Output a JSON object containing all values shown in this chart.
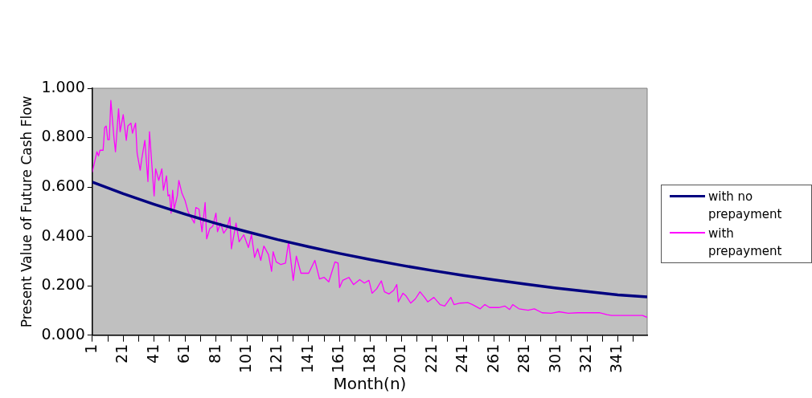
{
  "chart_data": {
    "type": "line",
    "xlabel": "Month(n)",
    "ylabel": "Present Value of Future Cash Flow",
    "legend": "right",
    "marker": "none",
    "line_style": "solid",
    "xlim": [
      1,
      360
    ],
    "xticks": [
      1,
      {
        "value": 11,
        "label": null
      },
      21,
      {
        "value": 31,
        "label": null
      },
      41,
      {
        "value": 51,
        "label": null
      },
      61,
      {
        "value": 71,
        "label": null
      },
      81,
      {
        "value": 91,
        "label": null
      },
      101,
      {
        "value": 111,
        "label": null
      },
      121,
      {
        "value": 131,
        "label": null
      },
      141,
      {
        "value": 151,
        "label": null
      },
      161,
      {
        "value": 171,
        "label": null
      },
      181,
      {
        "value": 191,
        "label": null
      },
      201,
      {
        "value": 211,
        "label": null
      },
      221,
      {
        "value": 231,
        "label": null
      },
      241,
      {
        "value": 251,
        "label": null
      },
      261,
      {
        "value": 271,
        "label": null
      },
      281,
      {
        "value": 291,
        "label": null
      },
      301,
      {
        "value": 311,
        "label": null
      },
      321,
      {
        "value": 331,
        "label": null
      },
      341,
      {
        "value": 351,
        "label": null
      }
    ],
    "ylim": [
      0,
      1
    ],
    "yticks": [
      {
        "value": 0,
        "label": "0.000"
      },
      {
        "value": 0.2,
        "label": "0.200"
      },
      {
        "value": 0.4,
        "label": "0.400"
      },
      {
        "value": 0.6,
        "label": "0.600"
      },
      {
        "value": 0.8,
        "label": "0.800"
      },
      {
        "value": 1,
        "label": "1.000"
      }
    ],
    "series": [
      {
        "name": "with no prepayment",
        "color": "#000080",
        "x": [
          1,
          21,
          41,
          61,
          81,
          101,
          121,
          141,
          161,
          181,
          201,
          221,
          241,
          261,
          281,
          301,
          321,
          341,
          360
        ],
        "values": [
          0.62,
          0.573,
          0.53,
          0.49,
          0.453,
          0.419,
          0.387,
          0.358,
          0.331,
          0.306,
          0.283,
          0.262,
          0.242,
          0.224,
          0.207,
          0.191,
          0.177,
          0.163,
          0.155
        ]
      },
      {
        "name": "with prepayment",
        "color": "#ff00ff",
        "x": [
          1,
          4,
          5,
          6,
          8,
          9,
          10,
          11,
          12,
          13,
          15,
          16,
          18,
          19,
          21,
          23,
          24,
          26,
          27,
          29,
          30,
          32,
          33,
          35,
          37,
          38,
          41,
          42,
          44,
          46,
          47,
          49,
          50,
          51,
          52,
          53,
          54,
          56,
          57,
          59,
          61,
          63,
          65,
          67,
          68,
          70,
          72,
          74,
          75,
          77,
          79,
          81,
          82,
          84,
          86,
          88,
          90,
          91,
          93,
          94,
          96,
          99,
          102,
          104,
          106,
          108,
          110,
          112,
          115,
          117,
          118,
          120,
          123,
          126,
          128,
          131,
          133,
          136,
          141,
          145,
          148,
          151,
          154,
          158,
          160,
          161,
          163,
          167,
          170,
          174,
          177,
          180,
          182,
          185,
          188,
          190,
          193,
          196,
          198,
          199,
          202,
          204,
          207,
          210,
          213,
          216,
          218,
          222,
          226,
          229,
          233,
          235,
          239,
          244,
          247,
          252,
          255,
          258,
          264,
          268,
          271,
          273,
          277,
          283,
          287,
          292,
          298,
          303,
          309,
          315,
          322,
          329,
          334,
          337,
          348,
          357,
          360
        ],
        "values": [
          0.66,
          0.743,
          0.726,
          0.749,
          0.749,
          0.841,
          0.847,
          0.792,
          0.792,
          0.951,
          0.801,
          0.743,
          0.917,
          0.824,
          0.893,
          0.789,
          0.847,
          0.859,
          0.818,
          0.859,
          0.737,
          0.668,
          0.714,
          0.789,
          0.622,
          0.824,
          0.564,
          0.674,
          0.627,
          0.674,
          0.587,
          0.645,
          0.564,
          0.569,
          0.494,
          0.587,
          0.511,
          0.564,
          0.627,
          0.575,
          0.546,
          0.5,
          0.477,
          0.454,
          0.517,
          0.511,
          0.419,
          0.537,
          0.39,
          0.431,
          0.442,
          0.494,
          0.419,
          0.454,
          0.413,
          0.431,
          0.477,
          0.35,
          0.419,
          0.454,
          0.378,
          0.407,
          0.355,
          0.407,
          0.315,
          0.35,
          0.303,
          0.361,
          0.326,
          0.259,
          0.338,
          0.297,
          0.286,
          0.292,
          0.378,
          0.222,
          0.32,
          0.251,
          0.251,
          0.303,
          0.228,
          0.234,
          0.216,
          0.297,
          0.292,
          0.193,
          0.222,
          0.234,
          0.205,
          0.225,
          0.211,
          0.222,
          0.17,
          0.188,
          0.22,
          0.176,
          0.167,
          0.182,
          0.205,
          0.135,
          0.17,
          0.159,
          0.13,
          0.147,
          0.176,
          0.153,
          0.135,
          0.153,
          0.124,
          0.118,
          0.153,
          0.124,
          0.13,
          0.132,
          0.124,
          0.107,
          0.124,
          0.112,
          0.112,
          0.118,
          0.104,
          0.124,
          0.107,
          0.101,
          0.107,
          0.091,
          0.089,
          0.095,
          0.089,
          0.091,
          0.091,
          0.091,
          0.083,
          0.08,
          0.08,
          0.08,
          0.072
        ]
      }
    ]
  }
}
